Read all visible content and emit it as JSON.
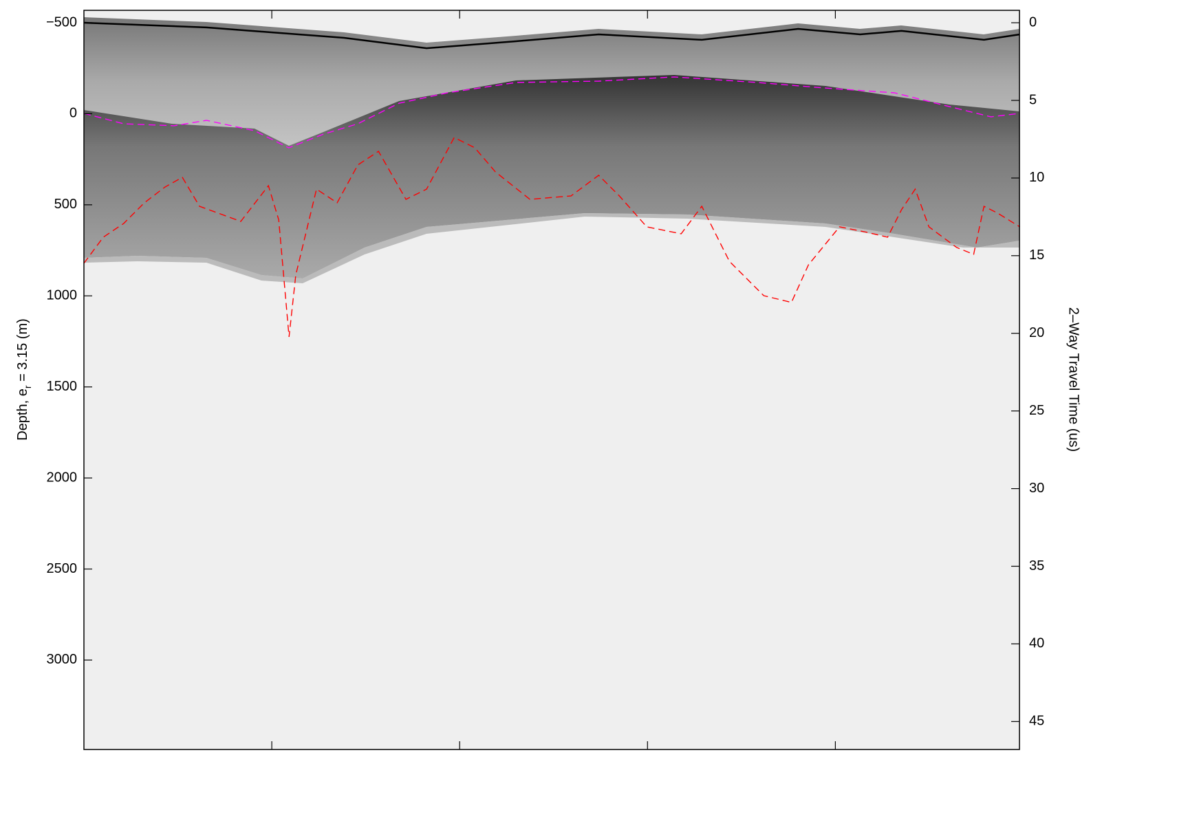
{
  "chart_data": {
    "type": "line",
    "ylabel": "Depth, e",
    "ylabel_sub": "r",
    "ylabel_rest": " = 3.15 (m)",
    "y2label": "2–Way Travel Time (us)",
    "xlim": [
      0,
      4.98
    ],
    "xticks": [
      1,
      2,
      3,
      4
    ],
    "ylim": [
      -568,
      3491
    ],
    "yticks": [
      {
        "value": -500,
        "label": "−500"
      },
      0,
      500,
      1000,
      1500,
      2000,
      2500,
      3000
    ],
    "y2lim": [
      -0.8,
      46.8
    ],
    "y2ticks": [
      0,
      5,
      10,
      15,
      20,
      25,
      30,
      35,
      40,
      45
    ],
    "series": [
      {
        "color": "#000000",
        "dash": "solid",
        "x": [
          0,
          0.652,
          1.385,
          1.824,
          2.3,
          2.74,
          3.289,
          3.802,
          4.132,
          4.352,
          4.791,
          4.982
        ],
        "values": [
          -500,
          -474,
          -417,
          -360,
          -398,
          -436,
          -406,
          -466,
          -436,
          -455,
          -406,
          -436
        ]
      },
      {
        "color": "#ff00ff",
        "dash": "dashed",
        "x": [
          0,
          0.212,
          0.48,
          0.652,
          0.908,
          1.09,
          1.275,
          1.458,
          1.678,
          1.934,
          2.3,
          2.74,
          3.143,
          3.582,
          3.949,
          4.315,
          4.608,
          4.828,
          4.982
        ],
        "values": [
          -2,
          55,
          66,
          36,
          93,
          187,
          112,
          55,
          -58,
          -115,
          -172,
          -179,
          -202,
          -172,
          -141,
          -115,
          -39,
          17,
          -2
        ]
      },
      {
        "color": "#ff0000",
        "dash": "dashed",
        "x": [
          0,
          0.103,
          0.212,
          0.322,
          0.432,
          0.524,
          0.615,
          0.835,
          0.982,
          1.037,
          1.092,
          1.128,
          1.238,
          1.348,
          1.458,
          1.568,
          1.714,
          1.824,
          1.971,
          2.081,
          2.19,
          2.374,
          2.593,
          2.74,
          2.85,
          2.996,
          3.179,
          3.289,
          3.436,
          3.619,
          3.766,
          3.857,
          4.022,
          4.168,
          4.278,
          4.352,
          4.425,
          4.498,
          4.645,
          4.736,
          4.791,
          4.864,
          4.982
        ],
        "values": [
          821,
          678,
          602,
          489,
          402,
          349,
          508,
          591,
          395,
          583,
          1225,
          885,
          414,
          489,
          281,
          206,
          470,
          414,
          130,
          187,
          319,
          470,
          451,
          338,
          451,
          621,
          659,
          508,
          810,
          999,
          1036,
          829,
          621,
          651,
          678,
          527,
          414,
          621,
          734,
          772,
          508,
          546,
          621
        ]
      }
    ]
  }
}
